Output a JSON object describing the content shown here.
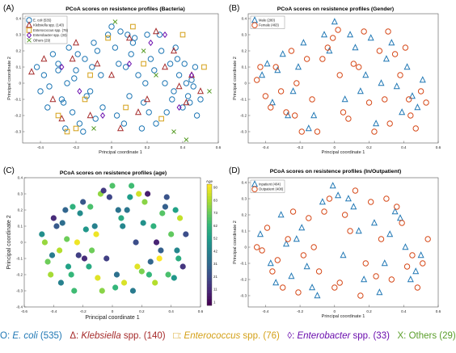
{
  "colors": {
    "ecoli": "#1f77b4",
    "klebsiella": "#a52a2a",
    "enterococcus": "#d4a017",
    "enterobacter": "#6a0dad",
    "others": "#5a9e2a",
    "male": "#1f77b4",
    "female": "#d64a1a",
    "inpatient": "#1f77b4",
    "outpatient": "#d64a1a"
  },
  "panels": [
    {
      "label": "(A)",
      "title": "PCoA scores on resistence profiles (Bacteria)",
      "xlabel": "Principal coordinate 1",
      "ylabel": "Principal coordinate 2",
      "legend": [
        "E. coli (535)",
        "Klebsiella spp. (140)",
        "Enterococcus spp. (76)",
        "Enterobacter spp. (33)",
        "Others (29)"
      ]
    },
    {
      "label": "(B)",
      "title": "PCoA scores on resistence profiles (Gender)",
      "xlabel": "Principal coordinate 1",
      "ylabel": "Principal coordinate 2",
      "legend": [
        "Male (280)",
        "Female (463)"
      ]
    },
    {
      "label": "(C)",
      "title": "PCoA scores on resistence profiles (age)",
      "xlabel": "Principal coordinate 1",
      "ylabel": "Principal coordinate 2",
      "colorbar_title": "Age",
      "colorbar_ticks": [
        "90",
        "83",
        "73",
        "62",
        "52",
        "42",
        "31",
        "21",
        "11",
        "1"
      ]
    },
    {
      "label": "(D)",
      "title": "PCoA scores on resistence profiles (In/Outpatient)",
      "xlabel": "Principal coordinate 1",
      "ylabel": "Principal coordinate 2",
      "legend": [
        "Inpatient (404)",
        "Outpatient (408)"
      ]
    }
  ],
  "bottom_legend": {
    "ecoli_prefix": "O: ",
    "ecoli_name": "E. coli",
    "ecoli_count": " (535)",
    "kleb_prefix": "Δ: ",
    "kleb_name": "Klebsiella",
    "kleb_count": " spp. (140)",
    "ent_prefix": "□: ",
    "ent_name": "Enterococcus",
    "ent_count": " spp. (76)",
    "eb_prefix": "◊: ",
    "eb_name": "Enterobacter",
    "eb_count": " spp. (33)",
    "oth_prefix": "X: ",
    "oth_name": "Others (29)"
  },
  "chart_data": [
    {
      "type": "scatter",
      "title": "PCoA scores on resistence profiles (Bacteria)",
      "xlabel": "Principal coordinate 1",
      "ylabel": "Principal coordinate 2",
      "xlim": [
        -0.5,
        0.6
      ],
      "ylim": [
        -0.37,
        0.43
      ],
      "xticks": [
        -0.4,
        -0.2,
        0,
        0.2,
        0.4,
        0.6
      ],
      "yticks": [
        -0.3,
        -0.2,
        -0.1,
        0,
        0.1,
        0.2,
        0.3,
        0.4
      ],
      "legend_position": "top-left",
      "series": [
        {
          "name": "E. coli (535)",
          "marker": "circle",
          "x": [
            -0.42,
            -0.38,
            -0.35,
            -0.3,
            -0.28,
            -0.25,
            -0.22,
            -0.2,
            -0.18,
            -0.15,
            -0.12,
            -0.1,
            -0.08,
            -0.05,
            -0.02,
            0.0,
            0.03,
            0.05,
            0.08,
            0.1,
            0.12,
            0.15,
            0.18,
            0.2,
            0.22,
            0.25,
            0.28,
            0.3,
            0.33,
            0.35,
            0.38,
            0.4,
            0.42,
            0.45,
            0.48,
            0.5,
            -0.4,
            -0.33,
            -0.27,
            -0.21,
            -0.16,
            -0.11,
            -0.06,
            0.02,
            0.07,
            0.13,
            0.19,
            0.24,
            0.31,
            0.37,
            0.43,
            0.47,
            -0.36,
            -0.3,
            -0.24,
            -0.14,
            -0.09,
            0.04,
            0.11,
            0.17,
            0.27,
            0.34,
            0.41,
            0.46,
            -0.26,
            -0.19,
            0.09,
            0.21,
            0.36,
            0.44
          ],
          "y": [
            0.1,
            0.05,
            -0.02,
            0.12,
            -0.1,
            0.0,
            -0.18,
            0.08,
            -0.25,
            0.15,
            -0.05,
            0.25,
            0.2,
            -0.15,
            0.3,
            0.35,
            -0.2,
            0.32,
            0.1,
            -0.08,
            0.25,
            0.05,
            -0.12,
            0.3,
            0.15,
            -0.25,
            0.2,
            0.0,
            0.12,
            -0.05,
            0.05,
            -0.15,
            0.0,
            0.02,
            -0.2,
            -0.1,
            -0.05,
            0.18,
            -0.12,
            0.03,
            -0.3,
            0.1,
            0.05,
            0.22,
            -0.25,
            0.28,
            0.0,
            0.08,
            -0.18,
            0.15,
            -0.08,
            0.1,
            -0.15,
            0.08,
            0.22,
            -0.08,
            -0.22,
            0.12,
            0.18,
            -0.28,
            0.3,
            -0.1,
            0.12,
            -0.02,
            -0.28,
            0.18,
            0.3,
            -0.18,
            0.22,
            -0.12
          ]
        },
        {
          "name": "Klebsiella spp. (140)",
          "marker": "triangle",
          "x": [
            -0.45,
            -0.33,
            -0.22,
            -0.12,
            0.0,
            0.1,
            0.2,
            0.3,
            0.38,
            0.45,
            -0.28,
            -0.08,
            0.15,
            0.35,
            0.5,
            -0.2,
            0.05,
            0.25,
            0.42,
            -0.38
          ],
          "y": [
            0.07,
            -0.1,
            0.15,
            -0.2,
            0.05,
            0.28,
            -0.1,
            0.1,
            -0.02,
            0.05,
            -0.22,
            0.12,
            -0.18,
            0.2,
            -0.05,
            0.25,
            -0.28,
            0.32,
            -0.12,
            0.15
          ]
        },
        {
          "name": "Enterococcus spp. (76)",
          "marker": "square",
          "x": [
            -0.3,
            -0.2,
            -0.12,
            -0.02,
            0.08,
            0.12,
            0.28,
            0.4,
            0.52,
            -0.15,
            0.18,
            -0.25
          ],
          "y": [
            -0.2,
            -0.28,
            0.05,
            0.28,
            -0.15,
            0.35,
            -0.22,
            0.3,
            0.1,
            -0.1,
            0.12,
            -0.3
          ]
        },
        {
          "name": "Enterobacter spp. (33)",
          "marker": "diamond",
          "x": [
            -0.28,
            -0.05,
            0.22,
            0.38,
            -0.18,
            0.1,
            0.45,
            0.3
          ],
          "y": [
            0.1,
            -0.2,
            0.25,
            -0.15,
            -0.05,
            0.12,
            0.05,
            0.3
          ]
        },
        {
          "name": "Others (29)",
          "marker": "x",
          "x": [
            0.02,
            0.18,
            0.35,
            -0.35,
            0.42,
            0.55,
            -0.1,
            0.25
          ],
          "y": [
            0.38,
            0.2,
            -0.3,
            0.3,
            -0.35,
            -0.05,
            -0.28,
            0.05
          ]
        }
      ]
    },
    {
      "type": "scatter",
      "title": "PCoA scores on resistence profiles (Gender)",
      "xlabel": "Principal coordinate 1",
      "ylabel": "Principal coordinate 2",
      "xlim": [
        -0.5,
        0.6
      ],
      "ylim": [
        -0.37,
        0.43
      ],
      "xticks": [
        -0.4,
        -0.2,
        0,
        0.2,
        0.4,
        0.6
      ],
      "yticks": [
        -0.3,
        -0.2,
        -0.1,
        0,
        0.1,
        0.2,
        0.3,
        0.4
      ],
      "legend_position": "top-left",
      "series": [
        {
          "name": "Male (280)",
          "marker": "triangle",
          "x": [
            -0.42,
            -0.36,
            -0.3,
            -0.24,
            -0.18,
            -0.12,
            -0.06,
            0.0,
            0.06,
            0.12,
            0.18,
            0.24,
            0.3,
            0.36,
            0.42,
            0.48,
            -0.33,
            -0.15,
            0.09,
            0.27,
            0.45,
            -0.27,
            -0.03,
            0.21,
            0.39,
            -0.39,
            -0.21,
            0.15,
            0.33,
            0.51
          ],
          "y": [
            0.05,
            -0.12,
            0.18,
            -0.05,
            0.25,
            -0.2,
            0.3,
            0.38,
            -0.1,
            0.22,
            0.05,
            -0.25,
            0.15,
            -0.02,
            0.1,
            -0.15,
            0.08,
            -0.28,
            0.3,
            0.0,
            -0.08,
            -0.2,
            0.2,
            0.28,
            -0.18,
            0.12,
            0.1,
            -0.05,
            0.25,
            0.02
          ]
        },
        {
          "name": "Female (463)",
          "marker": "circle",
          "x": [
            -0.45,
            -0.4,
            -0.34,
            -0.28,
            -0.22,
            -0.16,
            -0.1,
            -0.04,
            0.02,
            0.08,
            0.14,
            0.2,
            0.26,
            0.32,
            0.38,
            0.44,
            0.5,
            -0.37,
            -0.25,
            -0.13,
            -0.01,
            0.11,
            0.23,
            0.35,
            0.47,
            -0.31,
            -0.19,
            -0.07,
            0.05,
            0.17,
            0.29,
            0.41,
            0.53,
            -0.43,
            -0.23,
            0.03,
            0.31,
            0.43
          ],
          "y": [
            0.02,
            -0.08,
            0.1,
            -0.18,
            0.0,
            0.15,
            -0.3,
            0.22,
            0.33,
            -0.22,
            0.1,
            -0.12,
            0.2,
            -0.25,
            0.05,
            -0.2,
            -0.05,
            -0.15,
            0.2,
            -0.1,
            0.28,
            0.12,
            -0.3,
            0.18,
            -0.28,
            -0.05,
            -0.3,
            0.15,
            -0.18,
            0.32,
            -0.1,
            0.22,
            -0.12,
            0.1,
            -0.2,
            0.05,
            0.32,
            -0.1
          ]
        }
      ]
    },
    {
      "type": "scatter",
      "title": "PCoA scores on resistence profiles (age)",
      "xlabel": "Principal coordinate 1",
      "ylabel": "Principal coordinate 2",
      "xlim": [
        -0.6,
        0.6
      ],
      "ylim": [
        -0.4,
        0.4
      ],
      "xticks": [
        -0.6,
        -0.4,
        -0.2,
        0,
        0.2,
        0.4,
        0.6
      ],
      "yticks": [
        -0.4,
        -0.3,
        -0.2,
        -0.1,
        0,
        0.1,
        0.2,
        0.3,
        0.4
      ],
      "colorbar": {
        "title": "Age",
        "range": [
          1,
          90
        ]
      },
      "series": [
        {
          "name": "",
          "marker": "filled-circle",
          "x": [
            -0.48,
            -0.44,
            -0.4,
            -0.36,
            -0.32,
            -0.28,
            -0.24,
            -0.2,
            -0.16,
            -0.12,
            -0.08,
            -0.04,
            0.0,
            0.04,
            0.08,
            0.12,
            0.16,
            0.2,
            0.24,
            0.28,
            0.32,
            0.36,
            0.4,
            0.44,
            0.48,
            -0.42,
            -0.34,
            -0.26,
            -0.18,
            -0.1,
            -0.02,
            0.06,
            0.14,
            0.22,
            0.3,
            0.38,
            0.46,
            -0.38,
            -0.3,
            -0.22,
            -0.14,
            -0.06,
            0.02,
            0.1,
            0.18,
            0.26,
            0.34,
            0.42,
            0.5,
            -0.46,
            -0.35,
            -0.27,
            -0.19,
            -0.11,
            0.03,
            0.13,
            0.21,
            0.29,
            0.37,
            0.45,
            -0.31,
            -0.23,
            -0.15,
            0.07,
            0.17,
            0.33,
            0.43,
            -0.41,
            -0.07,
            0.25
          ],
          "y": [
            0.05,
            -0.12,
            0.15,
            -0.05,
            0.2,
            -0.2,
            0.0,
            0.25,
            -0.15,
            0.1,
            0.3,
            -0.1,
            0.35,
            0.2,
            -0.25,
            0.28,
            0.0,
            -0.18,
            0.3,
            0.1,
            -0.1,
            0.22,
            0.05,
            -0.05,
            -0.15,
            -0.2,
            0.12,
            -0.3,
            0.08,
            -0.22,
            0.28,
            0.15,
            -0.3,
            0.25,
            0.0,
            -0.2,
            0.15,
            0.1,
            -0.15,
            0.18,
            -0.05,
            0.32,
            -0.28,
            0.2,
            0.3,
            -0.12,
            0.18,
            -0.22,
            0.05,
            0.0,
            -0.25,
            0.22,
            -0.1,
            0.05,
            -0.2,
            0.35,
            0.12,
            -0.25,
            0.28,
            -0.1,
            0.02,
            -0.08,
            0.22,
            0.1,
            -0.15,
            -0.05,
            0.2,
            -0.08,
            -0.3,
            -0.2
          ],
          "values": [
            45,
            70,
            12,
            80,
            30,
            60,
            88,
            25,
            55,
            40,
            75,
            18,
            65,
            35,
            85,
            50,
            22,
            72,
            8,
            58,
            90,
            28,
            68,
            42,
            15,
            78,
            33,
            62,
            48,
            86,
            20,
            55,
            38,
            74,
            10,
            64,
            82,
            26,
            52,
            44,
            70,
            16,
            60,
            36,
            84,
            30,
            66,
            48,
            22,
            76,
            40,
            58,
            12,
            88,
            34,
            62,
            46,
            80,
            24,
            56,
            70,
            18,
            64,
            42,
            86,
            28,
            52,
            38,
            74,
            60
          ]
        }
      ]
    },
    {
      "type": "scatter",
      "title": "PCoA scores on resistence profiles (In/Outpatient)",
      "xlabel": "Principal coordinate 1",
      "ylabel": "Principal coordinate 2",
      "xlim": [
        -0.5,
        0.6
      ],
      "ylim": [
        -0.37,
        0.43
      ],
      "xticks": [
        -0.4,
        -0.2,
        0,
        0.2,
        0.4,
        0.6
      ],
      "yticks": [
        -0.3,
        -0.2,
        -0.1,
        0,
        0.1,
        0.2,
        0.3,
        0.4
      ],
      "legend_position": "top-left",
      "series": [
        {
          "name": "Inpatient (404)",
          "marker": "triangle",
          "x": [
            -0.43,
            -0.37,
            -0.31,
            -0.25,
            -0.19,
            -0.13,
            -0.07,
            -0.01,
            0.05,
            0.11,
            0.17,
            0.23,
            0.29,
            0.35,
            0.41,
            0.47,
            -0.34,
            -0.22,
            -0.1,
            0.02,
            0.14,
            0.26,
            0.38,
            0.5,
            -0.28,
            -0.16,
            0.08,
            0.32,
            0.44
          ],
          "y": [
            0.08,
            -0.1,
            0.2,
            -0.18,
            0.12,
            -0.25,
            0.28,
            0.38,
            -0.05,
            0.25,
            -0.2,
            0.15,
            -0.1,
            0.22,
            0.0,
            -0.15,
            -0.22,
            0.05,
            -0.3,
            0.32,
            0.1,
            -0.28,
            0.18,
            -0.05,
            0.02,
            -0.12,
            0.3,
            0.08,
            -0.2
          ]
        },
        {
          "name": "Outpatient (408)",
          "marker": "circle",
          "x": [
            -0.45,
            -0.39,
            -0.33,
            -0.27,
            -0.21,
            -0.15,
            -0.09,
            -0.03,
            0.03,
            0.09,
            0.15,
            0.21,
            0.27,
            0.33,
            0.39,
            0.45,
            0.51,
            -0.36,
            -0.24,
            -0.12,
            0.0,
            0.12,
            0.24,
            0.36,
            0.48,
            -0.3,
            -0.18,
            -0.06,
            0.06,
            0.18,
            0.3,
            0.42,
            -0.42,
            0.54
          ],
          "y": [
            0.0,
            0.12,
            -0.08,
            0.05,
            -0.28,
            0.18,
            -0.15,
            0.3,
            -0.22,
            0.1,
            -0.3,
            0.28,
            0.05,
            -0.2,
            0.15,
            -0.05,
            -0.1,
            -0.15,
            0.22,
            0.0,
            -0.25,
            0.35,
            -0.18,
            0.25,
            -0.25,
            -0.25,
            -0.05,
            0.22,
            0.2,
            -0.1,
            0.3,
            -0.12,
            -0.02,
            0.05
          ]
        }
      ]
    }
  ]
}
